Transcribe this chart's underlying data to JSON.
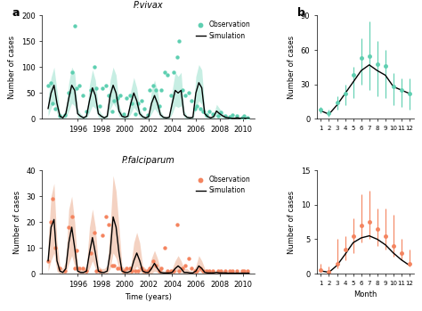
{
  "vivax_title": "P.vivax",
  "falciparum_title": "P.falciparum",
  "panel_a_label": "a",
  "panel_b_label": "b",
  "xlabel_time": "Time (years)",
  "xlabel_month": "Month",
  "ylabel": "Number of cases",
  "vivax_color": "#5ecfb1",
  "falciparum_color": "#f4845f",
  "sim_color": "#000000",
  "ci_color_vivax": "#b0e8d8",
  "ci_color_falciparum": "#f0c0a8",
  "vivax_obs_x": [
    1993.5,
    1993.7,
    1993.9,
    1994.1,
    1994.5,
    1994.9,
    1995.2,
    1995.5,
    1995.75,
    1995.9,
    1996.1,
    1996.4,
    1996.7,
    1997.1,
    1997.4,
    1997.6,
    1997.9,
    1998.1,
    1998.4,
    1998.6,
    1998.9,
    1999.1,
    1999.4,
    1999.6,
    1999.9,
    2000.1,
    2000.4,
    2000.6,
    2000.9,
    2001.1,
    2001.4,
    2001.6,
    2001.9,
    2002.1,
    2002.4,
    2002.6,
    2002.9,
    2003.1,
    2003.4,
    2003.6,
    2003.9,
    2004.1,
    2004.4,
    2004.6,
    2004.9,
    2005.1,
    2005.4,
    2005.6,
    2005.9,
    2006.1,
    2006.4,
    2006.6,
    2006.9,
    2007.1,
    2007.4,
    2007.9,
    2008.1,
    2008.5,
    2008.9,
    2009.1,
    2009.5,
    2009.9,
    2010.1,
    2010.4
  ],
  "vivax_obs_y": [
    65,
    70,
    30,
    20,
    5,
    8,
    50,
    90,
    180,
    60,
    65,
    45,
    15,
    55,
    100,
    60,
    25,
    60,
    65,
    45,
    15,
    35,
    40,
    45,
    10,
    40,
    45,
    30,
    10,
    30,
    35,
    20,
    8,
    55,
    65,
    55,
    25,
    55,
    90,
    85,
    45,
    90,
    120,
    150,
    55,
    45,
    50,
    35,
    20,
    25,
    20,
    15,
    8,
    15,
    10,
    5,
    12,
    6,
    4,
    8,
    5,
    3,
    5,
    3
  ],
  "vivax_sim_x": [
    1993.5,
    1993.75,
    1994.0,
    1994.25,
    1994.5,
    1994.75,
    1995.0,
    1995.25,
    1995.5,
    1995.75,
    1996.0,
    1996.25,
    1996.5,
    1996.75,
    1997.0,
    1997.25,
    1997.5,
    1997.75,
    1998.0,
    1998.25,
    1998.5,
    1998.75,
    1999.0,
    1999.25,
    1999.5,
    1999.75,
    2000.0,
    2000.25,
    2000.5,
    2000.75,
    2001.0,
    2001.25,
    2001.5,
    2001.75,
    2002.0,
    2002.25,
    2002.5,
    2002.75,
    2003.0,
    2003.25,
    2003.5,
    2003.75,
    2004.0,
    2004.25,
    2004.5,
    2004.75,
    2005.0,
    2005.25,
    2005.5,
    2005.75,
    2006.0,
    2006.25,
    2006.5,
    2006.75,
    2007.0,
    2007.25,
    2007.5,
    2007.75,
    2008.0,
    2008.25,
    2008.5,
    2008.75,
    2009.0,
    2009.25,
    2009.5,
    2009.75,
    2010.0,
    2010.25,
    2010.5
  ],
  "vivax_sim_y": [
    20,
    50,
    65,
    30,
    5,
    2,
    10,
    40,
    65,
    55,
    10,
    5,
    2,
    5,
    35,
    60,
    45,
    10,
    5,
    2,
    5,
    45,
    65,
    50,
    15,
    5,
    3,
    5,
    30,
    50,
    35,
    10,
    4,
    2,
    4,
    30,
    45,
    30,
    8,
    3,
    2,
    3,
    30,
    55,
    50,
    55,
    8,
    3,
    2,
    3,
    50,
    70,
    60,
    10,
    4,
    2,
    4,
    15,
    10,
    6,
    3,
    2,
    1,
    1,
    2,
    1,
    1,
    1,
    1
  ],
  "vivax_ci_x": [
    1993.5,
    1993.75,
    1994.0,
    1994.25,
    1994.5,
    1994.75,
    1995.0,
    1995.25,
    1995.5,
    1995.75,
    1996.0,
    1996.25,
    1996.5,
    1996.75,
    1997.0,
    1997.25,
    1997.5,
    1997.75,
    1998.0,
    1998.25,
    1998.5,
    1998.75,
    1999.0,
    1999.25,
    1999.5,
    1999.75,
    2000.0,
    2000.25,
    2000.5,
    2000.75,
    2001.0,
    2001.25,
    2001.5,
    2001.75,
    2002.0,
    2002.25,
    2002.5,
    2002.75,
    2003.0,
    2003.25,
    2003.5,
    2003.75,
    2004.0,
    2004.25,
    2004.5,
    2004.75,
    2005.0,
    2005.25,
    2005.5,
    2005.75,
    2006.0,
    2006.25,
    2006.5,
    2006.75,
    2007.0,
    2007.25,
    2007.5,
    2007.75,
    2008.0,
    2008.25,
    2008.5,
    2008.75,
    2009.0,
    2009.25,
    2009.5,
    2009.75,
    2010.0,
    2010.25,
    2010.5
  ],
  "vivax_ci_lo": [
    5,
    20,
    35,
    10,
    1,
    0,
    2,
    15,
    30,
    25,
    3,
    1,
    0,
    1,
    12,
    25,
    20,
    3,
    1,
    0,
    1,
    18,
    30,
    22,
    5,
    1,
    0,
    1,
    10,
    22,
    15,
    3,
    1,
    0,
    1,
    10,
    20,
    12,
    2,
    0,
    0,
    0,
    10,
    25,
    22,
    25,
    3,
    0,
    0,
    0,
    20,
    35,
    28,
    3,
    1,
    0,
    1,
    5,
    3,
    2,
    0,
    0,
    0,
    0,
    0,
    0,
    0,
    0,
    0
  ],
  "vivax_ci_hi": [
    40,
    80,
    100,
    55,
    12,
    6,
    20,
    70,
    100,
    90,
    20,
    10,
    5,
    10,
    65,
    95,
    75,
    20,
    10,
    5,
    10,
    75,
    100,
    85,
    28,
    10,
    6,
    10,
    55,
    80,
    60,
    20,
    8,
    4,
    8,
    55,
    75,
    55,
    15,
    6,
    4,
    6,
    55,
    90,
    82,
    90,
    16,
    6,
    4,
    6,
    82,
    105,
    95,
    20,
    8,
    4,
    8,
    28,
    20,
    12,
    6,
    4,
    2,
    2,
    4,
    2,
    2,
    2,
    2
  ],
  "falciparum_obs_x": [
    1993.5,
    1993.7,
    1993.9,
    1994.1,
    1994.5,
    1994.9,
    1995.2,
    1995.5,
    1995.75,
    1995.9,
    1996.1,
    1996.4,
    1996.7,
    1997.1,
    1997.4,
    1997.6,
    1997.9,
    1998.1,
    1998.4,
    1998.6,
    1998.9,
    1999.1,
    1999.4,
    1999.6,
    1999.9,
    2000.1,
    2000.4,
    2000.6,
    2000.9,
    2001.1,
    2001.4,
    2001.6,
    2001.9,
    2002.1,
    2002.4,
    2002.6,
    2002.9,
    2003.1,
    2003.4,
    2003.6,
    2003.9,
    2004.1,
    2004.4,
    2004.6,
    2004.9,
    2005.1,
    2005.4,
    2005.6,
    2005.9,
    2006.1,
    2006.4,
    2006.6,
    2006.9,
    2007.1,
    2007.4,
    2007.9,
    2008.1,
    2008.5,
    2008.9,
    2009.1,
    2009.5,
    2009.9,
    2010.1,
    2010.4
  ],
  "falciparum_obs_y": [
    5,
    20,
    29,
    10,
    2,
    1,
    18,
    22,
    2,
    9,
    2,
    2,
    1,
    8,
    16,
    1,
    1,
    15,
    22,
    19,
    3,
    3,
    2,
    2,
    1,
    2,
    2,
    1,
    1,
    1,
    2,
    1,
    1,
    2,
    5,
    3,
    1,
    2,
    10,
    1,
    1,
    1,
    19,
    1,
    2,
    3,
    6,
    2,
    1,
    1,
    2,
    1,
    1,
    1,
    1,
    1,
    1,
    1,
    1,
    1,
    1,
    1,
    1,
    1
  ],
  "falciparum_sim_x": [
    1993.5,
    1993.75,
    1994.0,
    1994.25,
    1994.5,
    1994.75,
    1995.0,
    1995.25,
    1995.5,
    1995.75,
    1996.0,
    1996.25,
    1996.5,
    1996.75,
    1997.0,
    1997.25,
    1997.5,
    1997.75,
    1998.0,
    1998.25,
    1998.5,
    1998.75,
    1999.0,
    1999.25,
    1999.5,
    1999.75,
    2000.0,
    2000.25,
    2000.5,
    2000.75,
    2001.0,
    2001.25,
    2001.5,
    2001.75,
    2002.0,
    2002.25,
    2002.5,
    2002.75,
    2003.0,
    2003.25,
    2003.5,
    2003.75,
    2004.0,
    2004.25,
    2004.5,
    2004.75,
    2005.0,
    2005.25,
    2005.5,
    2005.75,
    2006.0,
    2006.25,
    2006.5,
    2006.75,
    2007.0,
    2007.25,
    2007.5,
    2007.75,
    2008.0,
    2008.25,
    2008.5,
    2008.75,
    2009.0,
    2009.25,
    2009.5,
    2009.75,
    2010.0,
    2010.25,
    2010.5
  ],
  "falciparum_sim_y": [
    5,
    18,
    21,
    5,
    1,
    0.5,
    2,
    12,
    18,
    10,
    1,
    0.5,
    0.5,
    1,
    8,
    14,
    8,
    1,
    0.5,
    0.5,
    1,
    8,
    22,
    18,
    8,
    1,
    0.5,
    0.5,
    1,
    5,
    8,
    5,
    1,
    0.5,
    0.5,
    2,
    4,
    2,
    0.5,
    0.3,
    0.3,
    0.3,
    0.5,
    2,
    3,
    2,
    0.5,
    0.5,
    0.3,
    0.3,
    1,
    3,
    2,
    0.5,
    0.3,
    0.3,
    0.3,
    0.5,
    0.3,
    0.3,
    0.3,
    0.2,
    0.2,
    0.2,
    0.2,
    0.2,
    0.2,
    0.2,
    0.2
  ],
  "falciparum_ci_x": [
    1993.5,
    1993.75,
    1994.0,
    1994.25,
    1994.5,
    1994.75,
    1995.0,
    1995.25,
    1995.5,
    1995.75,
    1996.0,
    1996.25,
    1996.5,
    1996.75,
    1997.0,
    1997.25,
    1997.5,
    1997.75,
    1998.0,
    1998.25,
    1998.5,
    1998.75,
    1999.0,
    1999.25,
    1999.5,
    1999.75,
    2000.0,
    2000.25,
    2000.5,
    2000.75,
    2001.0,
    2001.25,
    2001.5,
    2001.75,
    2002.0,
    2002.25,
    2002.5,
    2002.75,
    2003.0,
    2003.25,
    2003.5,
    2003.75,
    2004.0,
    2004.25,
    2004.5,
    2004.75,
    2005.0,
    2005.25,
    2005.5,
    2005.75,
    2006.0,
    2006.25,
    2006.5,
    2006.75,
    2007.0,
    2007.25,
    2007.5,
    2007.75,
    2008.0,
    2008.25,
    2008.5,
    2008.75,
    2009.0,
    2009.25,
    2009.5,
    2009.75,
    2010.0,
    2010.25,
    2010.5
  ],
  "falciparum_ci_lo": [
    1,
    5,
    8,
    1,
    0,
    0,
    0.5,
    4,
    7,
    3,
    0,
    0,
    0,
    0,
    2,
    5,
    2,
    0,
    0,
    0,
    0,
    2,
    8,
    6,
    2,
    0,
    0,
    0,
    0,
    1,
    3,
    1,
    0,
    0,
    0,
    0,
    1,
    0.5,
    0,
    0,
    0,
    0,
    0,
    0.5,
    1,
    0.5,
    0,
    0,
    0,
    0,
    0,
    1,
    0.5,
    0,
    0,
    0,
    0,
    0,
    0,
    0,
    0,
    0,
    0,
    0,
    0,
    0,
    0,
    0,
    0
  ],
  "falciparum_ci_hi": [
    12,
    30,
    35,
    12,
    3,
    2,
    5,
    25,
    30,
    20,
    3,
    2,
    2,
    3,
    18,
    25,
    18,
    3,
    2,
    2,
    3,
    18,
    38,
    32,
    18,
    3,
    2,
    2,
    3,
    12,
    16,
    12,
    3,
    2,
    2,
    6,
    9,
    6,
    2,
    1,
    1,
    1,
    2,
    5,
    7,
    5,
    2,
    2,
    1,
    1,
    3,
    7,
    5,
    2,
    1,
    1,
    1,
    1,
    1,
    1,
    1,
    0.5,
    0.5,
    0.5,
    0.5,
    0.5,
    0.5,
    0.5,
    0.5
  ],
  "vivax_month_obs": [
    1,
    2,
    3,
    4,
    5,
    6,
    7,
    8,
    9,
    10,
    11,
    12
  ],
  "vivax_month_obs_y": [
    8,
    5,
    14,
    22,
    38,
    53,
    55,
    48,
    46,
    28,
    25,
    22
  ],
  "vivax_month_obs_yerr_lo": [
    5,
    2,
    8,
    12,
    18,
    30,
    25,
    20,
    18,
    12,
    10,
    8
  ],
  "vivax_month_obs_yerr_hi": [
    10,
    8,
    20,
    30,
    45,
    70,
    85,
    68,
    60,
    40,
    35,
    35
  ],
  "vivax_month_sim": [
    1,
    2,
    3,
    4,
    5,
    6,
    7,
    8,
    9,
    10,
    11,
    12
  ],
  "vivax_month_sim_y": [
    7,
    4,
    12,
    22,
    32,
    42,
    47,
    42,
    38,
    28,
    25,
    22
  ],
  "falciparum_month_obs": [
    1,
    2,
    3,
    4,
    5,
    6,
    7,
    8,
    9,
    10,
    11,
    12
  ],
  "falciparum_month_obs_y": [
    0.5,
    0.3,
    1.5,
    3.5,
    5.5,
    7.0,
    7.5,
    6.5,
    5.5,
    4.0,
    3.0,
    1.5
  ],
  "falciparum_month_obs_yerr_lo": [
    0.3,
    0.2,
    0.8,
    2.0,
    3.0,
    4.5,
    5.0,
    4.0,
    3.5,
    2.5,
    2.0,
    1.0
  ],
  "falciparum_month_obs_yerr_hi": [
    1.5,
    1.0,
    5.0,
    5.5,
    8.0,
    11.5,
    12.0,
    9.5,
    9.5,
    8.5,
    5.0,
    3.5
  ],
  "falciparum_month_sim": [
    1,
    2,
    3,
    4,
    5,
    6,
    7,
    8,
    9,
    10,
    11,
    12
  ],
  "falciparum_month_sim_y": [
    0.4,
    0.2,
    1.2,
    2.8,
    4.5,
    5.2,
    5.5,
    5.0,
    4.2,
    3.0,
    2.0,
    1.2
  ],
  "vivax_ylim": [
    0,
    200
  ],
  "vivax_yticks": [
    0,
    50,
    100,
    150,
    200
  ],
  "falciparum_ylim": [
    0,
    40
  ],
  "falciparum_yticks": [
    0,
    10,
    20,
    30,
    40
  ],
  "vivax_month_ylim": [
    0,
    90
  ],
  "vivax_month_yticks": [
    0,
    30,
    60,
    90
  ],
  "falciparum_month_ylim": [
    0,
    15
  ],
  "falciparum_month_yticks": [
    0,
    5,
    10,
    15
  ],
  "time_xlim": [
    1993,
    2011
  ],
  "time_xticks": [
    1996,
    1998,
    2000,
    2002,
    2004,
    2006,
    2008,
    2010
  ],
  "month_xlim": [
    0.5,
    12.5
  ],
  "month_xticks": [
    1,
    2,
    3,
    4,
    5,
    6,
    7,
    8,
    9,
    10,
    11,
    12
  ]
}
